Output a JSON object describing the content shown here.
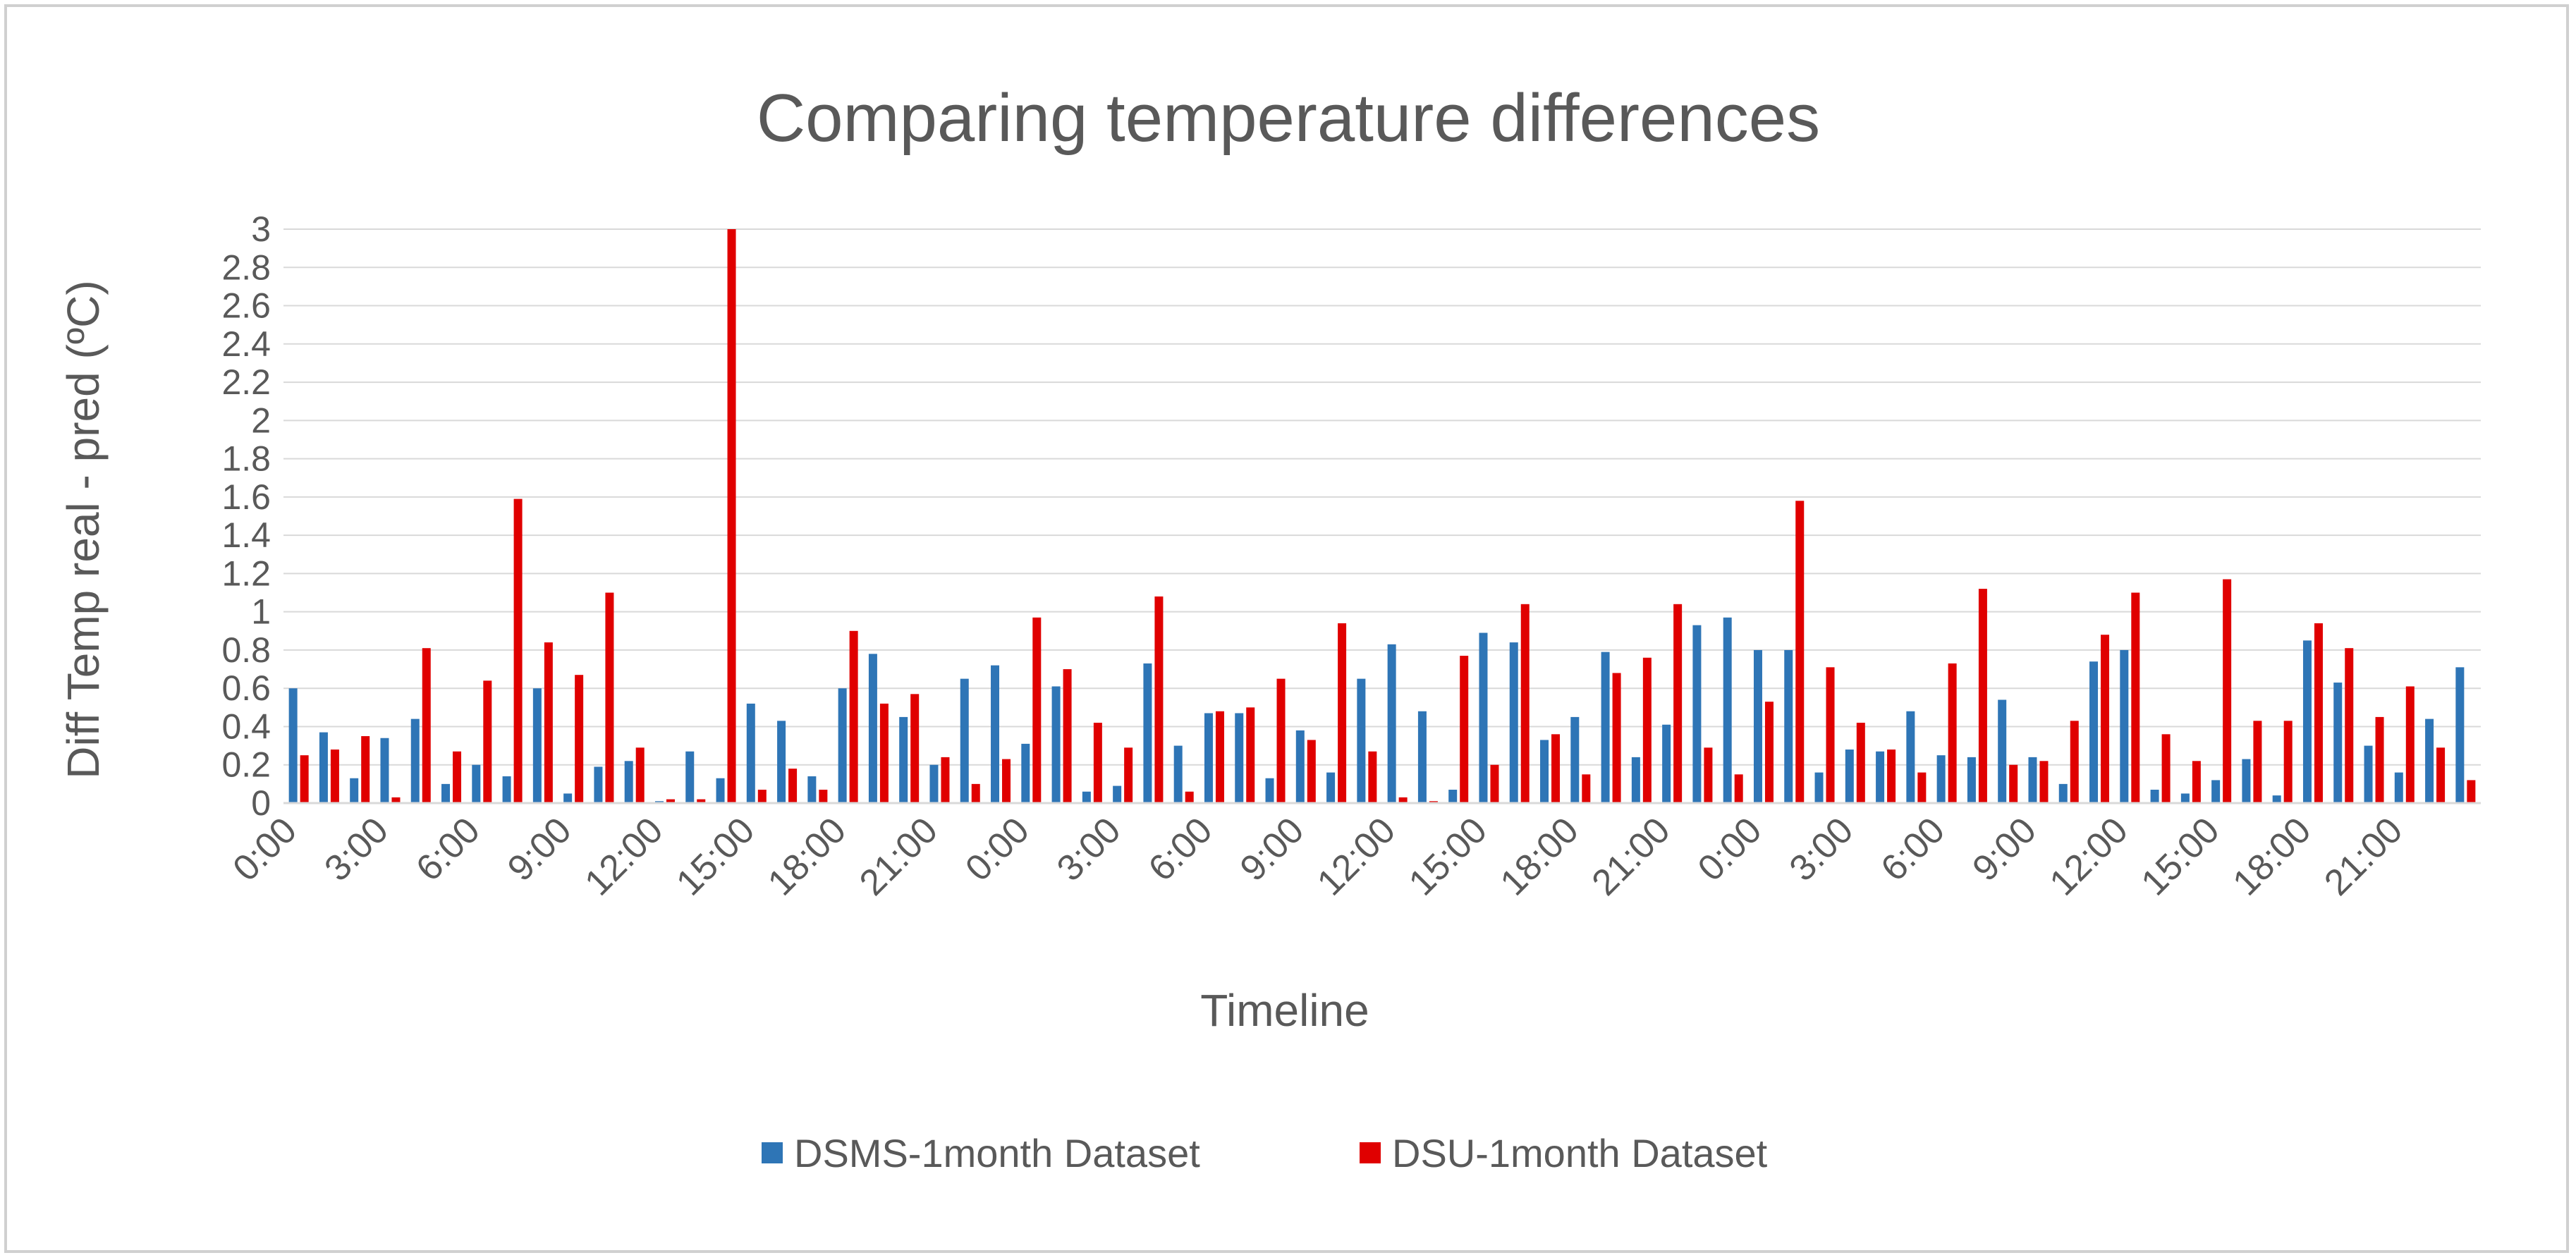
{
  "chart_data": {
    "type": "bar",
    "title": "Comparing temperature differences",
    "xlabel": "Timeline",
    "ylabel": "Diff Temp real - pred (ºC)",
    "ylim": [
      0,
      3
    ],
    "yticks": [
      "0",
      "0.2",
      "0.4",
      "0.6",
      "0.8",
      "1",
      "1.2",
      "1.4",
      "1.6",
      "1.8",
      "2",
      "2.2",
      "2.4",
      "2.6",
      "2.8",
      "3"
    ],
    "grid": true,
    "legend_position": "bottom",
    "colors": {
      "DSMS-1month Dataset": "#2e75b6",
      "DSU-1month Dataset": "#e00000",
      "grid": "#d9d9d9",
      "text": "#595959"
    },
    "tick_labels": [
      "0:00",
      "3:00",
      "6:00",
      "9:00",
      "12:00",
      "15:00",
      "18:00",
      "21:00",
      "0:00",
      "3:00",
      "6:00",
      "9:00",
      "12:00",
      "15:00",
      "18:00",
      "21:00",
      "0:00",
      "3:00",
      "6:00",
      "9:00",
      "12:00",
      "15:00",
      "18:00",
      "21:00"
    ],
    "tick_every": 3,
    "categories": [
      "0:00",
      "1:00",
      "2:00",
      "3:00",
      "4:00",
      "5:00",
      "6:00",
      "7:00",
      "8:00",
      "9:00",
      "10:00",
      "11:00",
      "12:00",
      "13:00",
      "14:00",
      "15:00",
      "16:00",
      "17:00",
      "18:00",
      "19:00",
      "20:00",
      "21:00",
      "22:00",
      "23:00",
      "0:00",
      "1:00",
      "2:00",
      "3:00",
      "4:00",
      "5:00",
      "6:00",
      "7:00",
      "8:00",
      "9:00",
      "10:00",
      "11:00",
      "12:00",
      "13:00",
      "14:00",
      "15:00",
      "16:00",
      "17:00",
      "18:00",
      "19:00",
      "20:00",
      "21:00",
      "22:00",
      "23:00",
      "0:00",
      "1:00",
      "2:00",
      "3:00",
      "4:00",
      "5:00",
      "6:00",
      "7:00",
      "8:00",
      "9:00",
      "10:00",
      "11:00",
      "12:00",
      "13:00",
      "14:00",
      "15:00",
      "16:00",
      "17:00",
      "18:00",
      "19:00",
      "20:00",
      "21:00",
      "22:00",
      "23:00"
    ],
    "series": [
      {
        "name": "DSMS-1month Dataset",
        "values": [
          0.6,
          0.37,
          0.13,
          0.34,
          0.44,
          0.1,
          0.2,
          0.14,
          0.6,
          0.05,
          0.19,
          0.22,
          0.01,
          0.27,
          0.13,
          0.52,
          0.43,
          0.14,
          0.6,
          0.78,
          0.45,
          0.2,
          0.65,
          0.72,
          0.31,
          0.61,
          0.06,
          0.09,
          0.73,
          0.3,
          0.47,
          0.47,
          0.13,
          0.38,
          0.16,
          0.65,
          0.83,
          0.48,
          0.07,
          0.89,
          0.84,
          0.33,
          0.45,
          0.79,
          0.24,
          0.41,
          0.93,
          0.97,
          0.8,
          0.8,
          0.16,
          0.28,
          0.27,
          0.48,
          0.25,
          0.24,
          0.54,
          0.24,
          0.1,
          0.74,
          0.8,
          0.07,
          0.05,
          0.12,
          0.23,
          0.04,
          0.85,
          0.63,
          0.3,
          0.16,
          0.44,
          0.71
        ]
      },
      {
        "name": "DSU-1month Dataset",
        "values": [
          0.25,
          0.28,
          0.35,
          0.03,
          0.81,
          0.27,
          0.64,
          1.59,
          0.84,
          0.67,
          1.1,
          0.29,
          0.02,
          0.02,
          3.0,
          0.07,
          0.18,
          0.07,
          0.9,
          0.52,
          0.57,
          0.24,
          0.1,
          0.23,
          0.97,
          0.7,
          0.42,
          0.29,
          1.08,
          0.06,
          0.48,
          0.5,
          0.65,
          0.33,
          0.94,
          0.27,
          0.03,
          0.01,
          0.77,
          0.2,
          1.04,
          0.36,
          0.15,
          0.68,
          0.76,
          1.04,
          0.29,
          0.15,
          0.53,
          1.58,
          0.71,
          0.42,
          0.28,
          0.16,
          0.73,
          1.12,
          0.2,
          0.22,
          0.43,
          0.88,
          1.1,
          0.36,
          0.22,
          1.17,
          0.43,
          0.43,
          0.94,
          0.81,
          0.45,
          0.61,
          0.29,
          0.12
        ]
      }
    ]
  }
}
